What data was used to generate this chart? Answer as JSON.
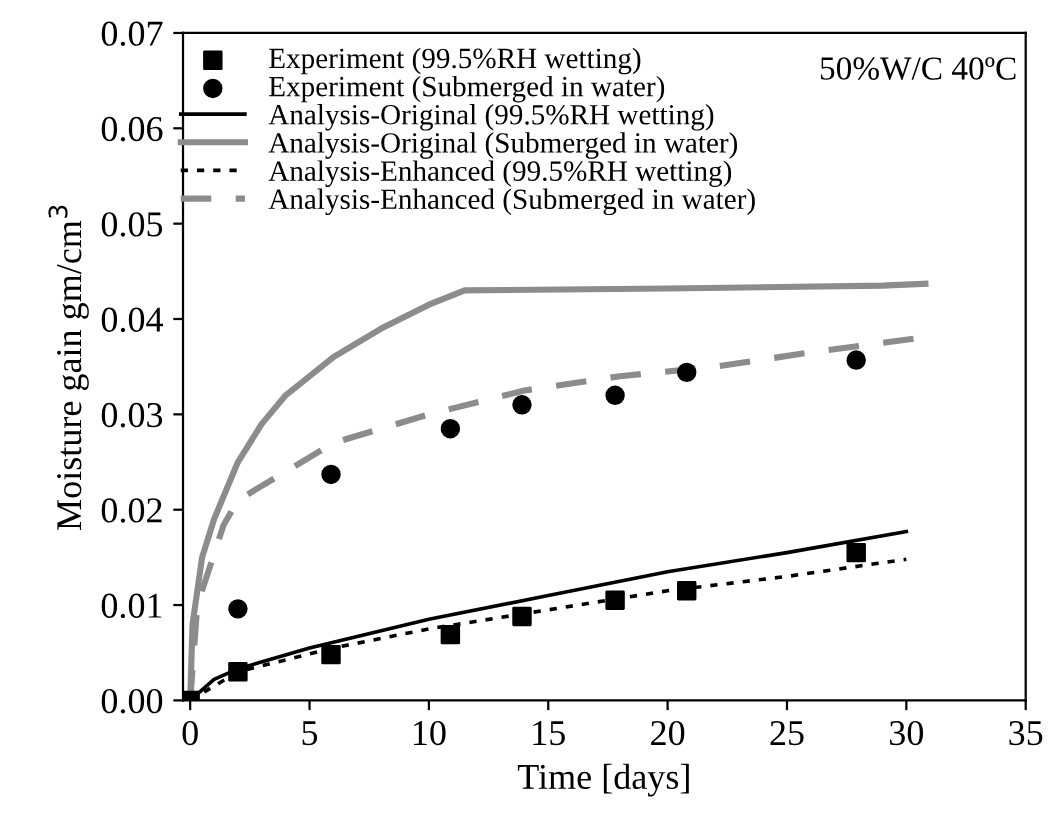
{
  "chart_data": {
    "type": "line",
    "xlabel": "Time [days]",
    "ylabel": "Moisture gain gm/cm$^{3}$",
    "annotations": [
      "50%W/C 40ºC"
    ],
    "xlim": [
      -0.3,
      35
    ],
    "xticks": [
      0,
      5,
      10,
      15,
      20,
      25,
      30,
      35
    ],
    "ylim": [
      0,
      0.07
    ],
    "yticks": [
      {
        "value": 0,
        "label": "0.00"
      },
      0.01,
      0.02,
      0.03,
      0.04,
      0.05,
      0.06,
      0.07
    ],
    "grid": false,
    "legend": "top",
    "series": [
      {
        "name": "Experiment (99.5%RH wetting)",
        "type": "scatter",
        "marker": "square",
        "color": "#000000",
        "x": [
          0,
          2,
          5.9,
          10.9,
          13.9,
          17.8,
          20.8,
          27.9
        ],
        "values": [
          0,
          0.003,
          0.0048,
          0.0069,
          0.0088,
          0.0105,
          0.0115,
          0.0155
        ]
      },
      {
        "name": "Experiment (Submerged in water)",
        "type": "scatter",
        "marker": "circle",
        "color": "#000000",
        "x": [
          2,
          5.9,
          10.9,
          13.9,
          17.8,
          20.8,
          27.9
        ],
        "values": [
          0.0096,
          0.0237,
          0.0285,
          0.031,
          0.032,
          0.0344,
          0.0357
        ]
      },
      {
        "name": "Analysis-Original (99.5%RH wetting)",
        "line_style": "solid",
        "color": "#000000",
        "x": [
          0,
          1,
          2,
          5,
          10,
          15,
          20,
          25,
          30
        ],
        "values": [
          0,
          0.0022,
          0.0033,
          0.0055,
          0.0085,
          0.011,
          0.0135,
          0.0155,
          0.0177
        ]
      },
      {
        "name": "Analysis-Original (Submerged in water)",
        "line_style": "solid",
        "color": "#8c8c8c",
        "x": [
          0,
          0.1,
          0.5,
          1,
          2,
          3,
          4,
          6,
          8,
          10,
          11.5,
          20,
          29,
          30.8
        ],
        "values": [
          0,
          0.008,
          0.015,
          0.019,
          0.025,
          0.029,
          0.032,
          0.036,
          0.039,
          0.0415,
          0.043,
          0.0432,
          0.0435,
          0.0437
        ]
      },
      {
        "name": "Analysis-Enhanced (99.5%RH wetting)",
        "line_style": "dotted",
        "color": "#000000",
        "x": [
          0,
          2,
          6,
          10,
          15,
          20,
          25,
          30
        ],
        "values": [
          0,
          0.003,
          0.0055,
          0.0075,
          0.0095,
          0.0115,
          0.013,
          0.0148
        ]
      },
      {
        "name": "Analysis-Enhanced (Submerged in water)",
        "line_style": "dashed",
        "color": "#8c8c8c",
        "x": [
          0,
          0.3,
          1.4,
          2,
          6,
          10,
          14,
          18,
          22,
          26,
          30.5
        ],
        "values": [
          0,
          0.01,
          0.0184,
          0.021,
          0.027,
          0.03,
          0.0325,
          0.034,
          0.035,
          0.0365,
          0.038
        ]
      }
    ]
  }
}
